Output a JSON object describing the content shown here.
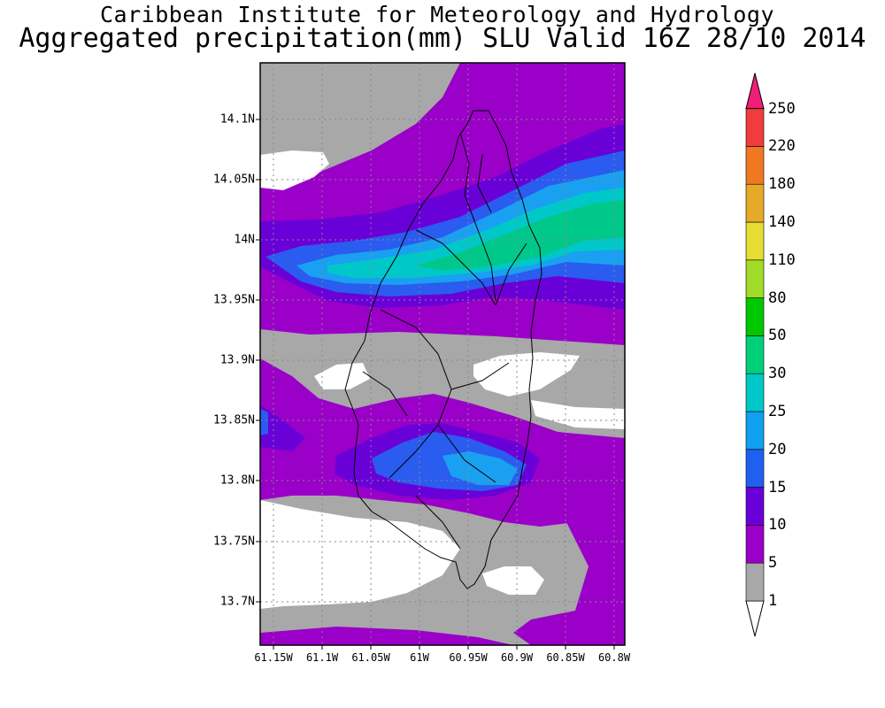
{
  "header": {
    "institute": "Caribbean Institute for Meteorology and Hydrology",
    "product": "Aggregated precipitation(mm) SLU Valid 16Z 28/10 2014"
  },
  "axes": {
    "lat_labels": [
      "14.1N",
      "14.05N",
      "14N",
      "13.95N",
      "13.9N",
      "13.85N",
      "13.8N",
      "13.75N",
      "13.7N"
    ],
    "lon_labels": [
      "61.15W",
      "61.1W",
      "61.05W",
      "61W",
      "60.95W",
      "60.9W",
      "60.85W",
      "60.8W"
    ]
  },
  "legend": {
    "levels": [
      {
        "label": "1",
        "color": "#ffffff"
      },
      {
        "label": "5",
        "color": "#a8a8a8"
      },
      {
        "label": "10",
        "color": "#9a00c8"
      },
      {
        "label": "15",
        "color": "#6a00d8"
      },
      {
        "label": "20",
        "color": "#2060f0"
      },
      {
        "label": "25",
        "color": "#10a0f0"
      },
      {
        "label": "30",
        "color": "#00c8c8"
      },
      {
        "label": "50",
        "color": "#00d07a"
      },
      {
        "label": "80",
        "color": "#00c800"
      },
      {
        "label": "110",
        "color": "#a0dc28"
      },
      {
        "label": "140",
        "color": "#e6dc32"
      },
      {
        "label": "180",
        "color": "#e6aa28"
      },
      {
        "label": "220",
        "color": "#f07820"
      },
      {
        "label": "250",
        "color": "#f03c3c"
      }
    ],
    "top_color": "#f01e78"
  },
  "field_colors": {
    "white": "#ffffff",
    "gray": "#a8a8a8",
    "purple": "#9a00c8",
    "violet": "#6a00d8",
    "blue": "#2a5cf0",
    "lightblue": "#1aa0f0",
    "teal": "#00c8c8",
    "green": "#00c88a"
  }
}
